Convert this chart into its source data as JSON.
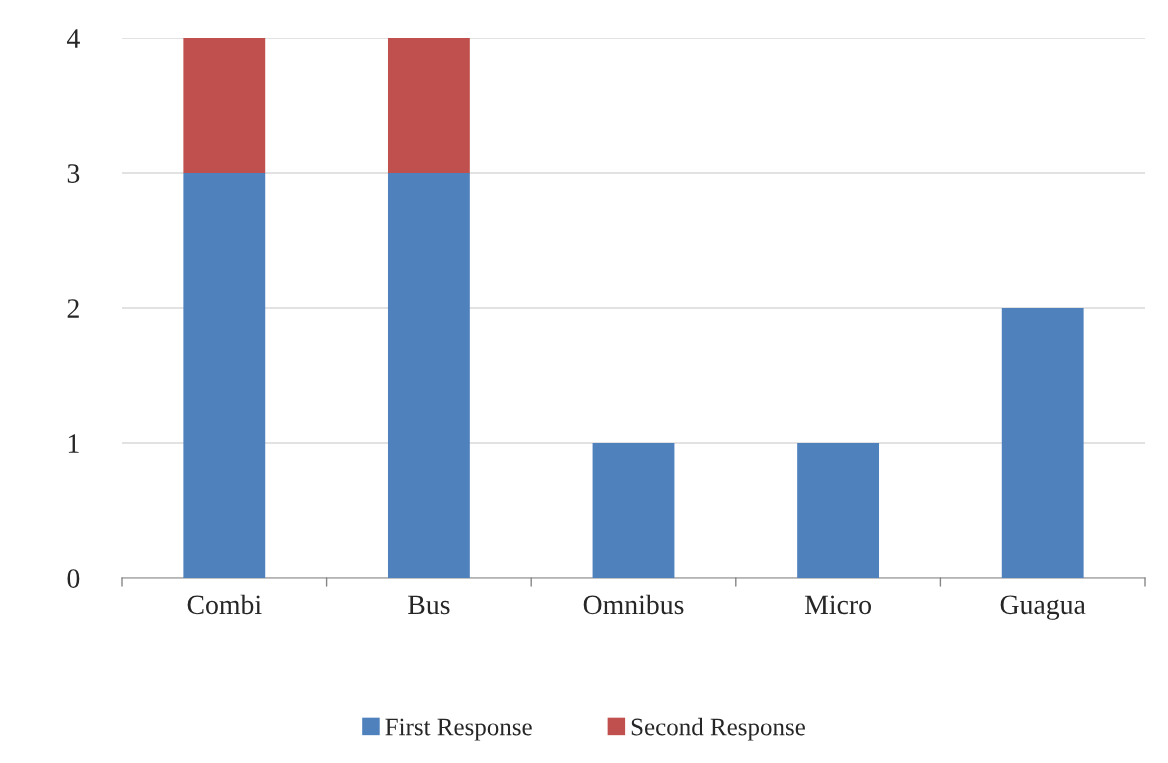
{
  "chart_data": {
    "type": "bar",
    "stacked": true,
    "categories": [
      "Combi",
      "Bus",
      "Omnibus",
      "Micro",
      "Guagua"
    ],
    "series": [
      {
        "name": "First Response",
        "color": "#4f81bd",
        "values": [
          3,
          3,
          1,
          1,
          2
        ]
      },
      {
        "name": "Second Response",
        "color": "#c0504d",
        "values": [
          1,
          1,
          null,
          null,
          null
        ]
      }
    ],
    "ylim": [
      0,
      4
    ],
    "yticks": [
      0,
      1,
      2,
      3,
      4
    ],
    "grid": "y",
    "legend": "bottom"
  }
}
